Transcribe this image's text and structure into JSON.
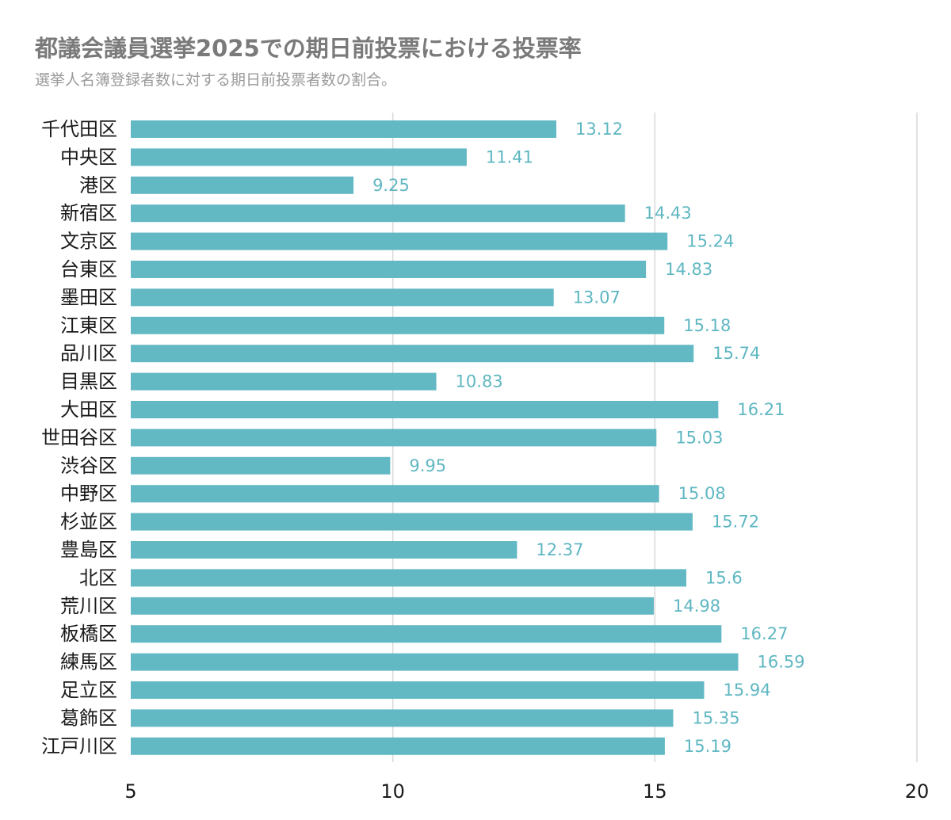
{
  "chart_data": {
    "type": "bar",
    "orientation": "horizontal",
    "title": "都議会議員選挙2025での期日前投票における投票率",
    "subtitle": "選挙人名簿登録者数に対する期日前投票者数の割合。",
    "categories": [
      "千代田区",
      "中央区",
      "港区",
      "新宿区",
      "文京区",
      "台東区",
      "墨田区",
      "江東区",
      "品川区",
      "目黒区",
      "大田区",
      "世田谷区",
      "渋谷区",
      "中野区",
      "杉並区",
      "豊島区",
      "北区",
      "荒川区",
      "板橋区",
      "練馬区",
      "足立区",
      "葛飾区",
      "江戸川区"
    ],
    "values": [
      13.12,
      11.41,
      9.25,
      14.43,
      15.24,
      14.83,
      13.07,
      15.18,
      15.74,
      10.83,
      16.21,
      15.03,
      9.95,
      15.08,
      15.72,
      12.37,
      15.6,
      14.98,
      16.27,
      16.59,
      15.94,
      15.35,
      15.19
    ],
    "value_labels": [
      "13.12",
      "11.41",
      "9.25",
      "14.43",
      "15.24",
      "14.83",
      "13.07",
      "15.18",
      "15.74",
      "10.83",
      "16.21",
      "15.03",
      "9.95",
      "15.08",
      "15.72",
      "12.37",
      "15.6",
      "14.98",
      "16.27",
      "16.59",
      "15.94",
      "15.35",
      "15.19"
    ],
    "xlim": [
      5,
      20
    ],
    "xticks": [
      5,
      10,
      15,
      20
    ],
    "xlabel": "",
    "ylabel": "",
    "grid": true,
    "legend": "none",
    "bar_color": "#62b8c3",
    "label_color": "#5fb7c2"
  }
}
